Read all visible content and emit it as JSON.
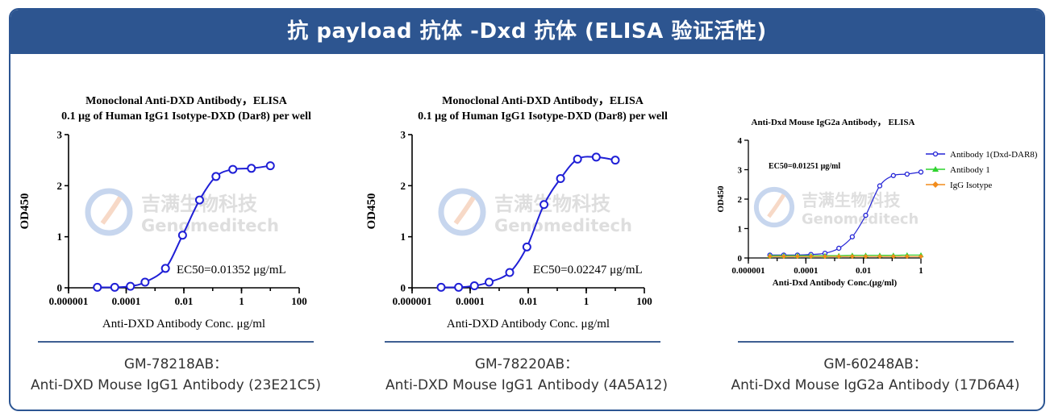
{
  "banner_title": "抗 payload 抗体 -Dxd 抗体 (ELISA 验证活性)",
  "watermark": {
    "cn": "吉满生物科技",
    "en": "Genomeditech"
  },
  "captions": [
    {
      "code": "GM-78218AB：",
      "name": "Anti-DXD Mouse IgG1 Antibody (23E21C5)"
    },
    {
      "code": "GM-78220AB：",
      "name": "Anti-DXD Mouse IgG1 Antibody (4A5A12)"
    },
    {
      "code": "GM-60248AB：",
      "name": "Anti-Dxd Mouse IgG2a Antibody (17D6A4)"
    }
  ],
  "chart_data": [
    {
      "type": "scatter",
      "title": "Monoclonal Anti-DXD Antibody，ELISA",
      "subtitle": "0.1 μg of Human IgG1 Isotype-DXD (Dar8) per well",
      "xlabel": "Anti-DXD Antibody Conc. μg/ml",
      "ylabel": "OD450",
      "x_scale": "log",
      "xlim": [
        1e-06,
        100
      ],
      "ylim": [
        0,
        3
      ],
      "x_ticks": [
        "0.000001",
        "0.0001",
        "0.01",
        "1",
        "100"
      ],
      "y_ticks": [
        "0",
        "1",
        "2",
        "3"
      ],
      "annotation": "EC50=0.01352 μg/mL",
      "color": "#1f1fd6",
      "series": [
        {
          "x": [
            1e-05,
            4e-05,
            0.00014,
            0.00045,
            0.0023,
            0.009,
            0.035,
            0.13,
            0.5,
            2.2,
            10
          ],
          "y": [
            0.01,
            0.01,
            0.03,
            0.11,
            0.38,
            1.03,
            1.72,
            2.18,
            2.32,
            2.34,
            2.39
          ]
        }
      ]
    },
    {
      "type": "scatter",
      "title": "Monoclonal Anti-DXD Antibody，ELISA",
      "subtitle": "0.1 μg of Human IgG1 Isotype-DXD (Dar8) per well",
      "xlabel": "Anti-DXD Antibody Conc. μg/ml",
      "ylabel": "OD450",
      "x_scale": "log",
      "xlim": [
        1e-06,
        100
      ],
      "ylim": [
        0,
        3
      ],
      "x_ticks": [
        "0.000001",
        "0.0001",
        "0.01",
        "1",
        "100"
      ],
      "y_ticks": [
        "0",
        "1",
        "2",
        "3"
      ],
      "annotation": "EC50=0.02247 μg/mL",
      "color": "#1f1fd6",
      "series": [
        {
          "x": [
            1e-05,
            4e-05,
            0.00014,
            0.00045,
            0.0023,
            0.009,
            0.035,
            0.13,
            0.5,
            2.2,
            10
          ],
          "y": [
            0.01,
            0.01,
            0.04,
            0.11,
            0.3,
            0.8,
            1.63,
            2.14,
            2.52,
            2.56,
            2.5
          ]
        }
      ]
    },
    {
      "type": "line",
      "title": "Anti-Dxd Mouse IgG2a Antibody， ELISA",
      "xlabel": "Anti-Dxd Antibody Conc.(μg/ml)",
      "ylabel": "OD450",
      "x_scale": "log",
      "xlim": [
        1e-06,
        1
      ],
      "ylim": [
        0,
        4
      ],
      "x_ticks": [
        "0.000001",
        "0.0001",
        "0.01",
        "1"
      ],
      "y_ticks": [
        "0",
        "1",
        "2",
        "3",
        "4"
      ],
      "annotation": "EC50=0.01251 μg/ml",
      "legend_position": "top-right",
      "series": [
        {
          "name": "Antibody 1(Dxd-DAR8)",
          "color": "#2323d6",
          "marker": "circle",
          "x": [
            5.6e-06,
            1.7e-05,
            5.1e-05,
            0.00015,
            0.00046,
            0.0014,
            0.0041,
            0.012,
            0.037,
            0.11,
            0.33,
            1
          ],
          "y": [
            0.1,
            0.1,
            0.1,
            0.12,
            0.16,
            0.33,
            0.72,
            1.45,
            2.45,
            2.8,
            2.85,
            2.92
          ]
        },
        {
          "name": "Antibody 1",
          "color": "#2fd32f",
          "marker": "triangle",
          "x": [
            5.6e-06,
            1.7e-05,
            5.1e-05,
            0.00015,
            0.00046,
            0.0014,
            0.0041,
            0.012,
            0.037,
            0.11,
            0.33,
            1
          ],
          "y": [
            0.08,
            0.08,
            0.08,
            0.08,
            0.08,
            0.08,
            0.09,
            0.09,
            0.09,
            0.09,
            0.1,
            0.1
          ]
        },
        {
          "name": "IgG Isotype",
          "color": "#f28c1c",
          "marker": "diamond",
          "x": [
            5.6e-06,
            1.7e-05,
            5.1e-05,
            0.00015,
            0.00046,
            0.0014,
            0.0041,
            0.012,
            0.037,
            0.11,
            0.33,
            1
          ],
          "y": [
            0.05,
            0.05,
            0.05,
            0.05,
            0.05,
            0.05,
            0.05,
            0.05,
            0.05,
            0.05,
            0.05,
            0.05
          ]
        }
      ]
    }
  ]
}
